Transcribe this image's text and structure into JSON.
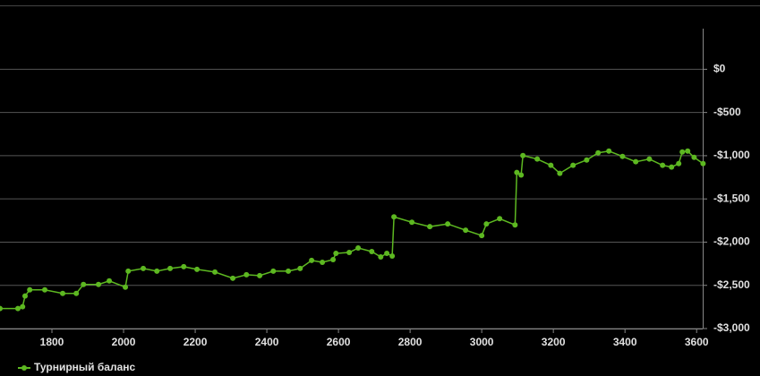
{
  "chart_data": {
    "type": "line",
    "x": [
      1655,
      1705,
      1718,
      1725,
      1738,
      1780,
      1830,
      1868,
      1888,
      1930,
      1960,
      2005,
      2013,
      2055,
      2093,
      2130,
      2168,
      2205,
      2255,
      2305,
      2343,
      2380,
      2418,
      2460,
      2493,
      2525,
      2555,
      2585,
      2593,
      2630,
      2655,
      2693,
      2718,
      2735,
      2750,
      2755,
      2805,
      2855,
      2905,
      2955,
      3000,
      3013,
      3050,
      3093,
      3098,
      3110,
      3115,
      3155,
      3193,
      3218,
      3255,
      3293,
      3325,
      3355,
      3393,
      3430,
      3468,
      3505,
      3530,
      3550,
      3560,
      3575,
      3593,
      3618
    ],
    "series": [
      {
        "name": "Турнирный баланс",
        "color": "#5db821",
        "values": [
          -2768,
          -2768,
          -2747,
          -2623,
          -2552,
          -2552,
          -2593,
          -2593,
          -2490,
          -2490,
          -2449,
          -2521,
          -2336,
          -2305,
          -2336,
          -2305,
          -2284,
          -2315,
          -2346,
          -2418,
          -2377,
          -2387,
          -2336,
          -2336,
          -2305,
          -2212,
          -2233,
          -2202,
          -2130,
          -2120,
          -2068,
          -2109,
          -2171,
          -2130,
          -2161,
          -1708,
          -1770,
          -1821,
          -1790,
          -1862,
          -1924,
          -1790,
          -1729,
          -1801,
          -1194,
          -1224,
          -998,
          -1039,
          -1111,
          -1204,
          -1111,
          -1050,
          -967,
          -947,
          -1008,
          -1070,
          -1039,
          -1111,
          -1132,
          -1091,
          -957,
          -947,
          -1019,
          -1091
        ]
      }
    ],
    "xlim": [
      1655,
      3617
    ],
    "xticks": [
      1800,
      2000,
      2200,
      2400,
      2600,
      2800,
      3000,
      3200,
      3400,
      3600
    ],
    "ylim": [
      -3000,
      470
    ],
    "yticks": [
      {
        "value": 0,
        "label": "$0"
      },
      {
        "value": -500,
        "label": "-$500"
      },
      {
        "value": -1000,
        "label": "-$1,000"
      },
      {
        "value": -1500,
        "label": "-$1,500"
      },
      {
        "value": -2000,
        "label": "-$2,000"
      },
      {
        "value": -2500,
        "label": "-$2,500"
      },
      {
        "value": -3000,
        "label": "-$3,000"
      }
    ],
    "grid": true
  }
}
